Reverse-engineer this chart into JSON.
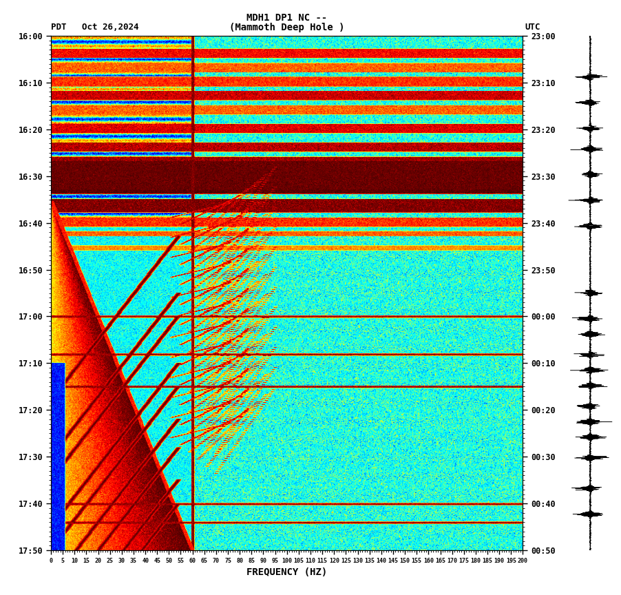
{
  "title_line1": "MDH1 DP1 NC --",
  "title_line2": "(Mammoth Deep Hole )",
  "label_left": "PDT   Oct 26,2024",
  "label_right": "UTC",
  "xlabel": "FREQUENCY (HZ)",
  "freq_min": 0,
  "freq_max": 200,
  "ytick_pdt": [
    "16:00",
    "16:10",
    "16:20",
    "16:30",
    "16:40",
    "16:50",
    "17:00",
    "17:10",
    "17:20",
    "17:30",
    "17:40",
    "17:50"
  ],
  "ytick_utc": [
    "23:00",
    "23:10",
    "23:20",
    "23:30",
    "23:40",
    "23:50",
    "00:00",
    "00:10",
    "00:20",
    "00:30",
    "00:40",
    "00:50"
  ],
  "n_time": 720,
  "n_freq": 800,
  "total_minutes": 110,
  "cmap_colors": [
    [
      0.0,
      "#000080"
    ],
    [
      0.08,
      "#0000ff"
    ],
    [
      0.18,
      "#0080ff"
    ],
    [
      0.3,
      "#00ffff"
    ],
    [
      0.48,
      "#ffff00"
    ],
    [
      0.62,
      "#ff8000"
    ],
    [
      0.75,
      "#ff0000"
    ],
    [
      0.88,
      "#800000"
    ],
    [
      1.0,
      "#400000"
    ]
  ],
  "vmin": 0.0,
  "vmax": 1.0
}
